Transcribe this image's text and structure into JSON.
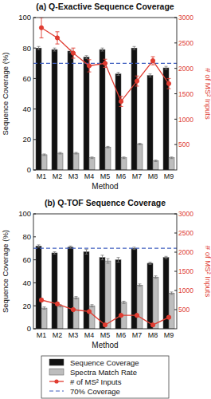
{
  "chart_data": [
    {
      "type": "bar",
      "title": "(a) Q-Exactive Sequence Coverage",
      "x_label": "Method",
      "y_label": "Sequence Coverage (%)",
      "y2_label": "# of MS² Inputs",
      "categories": [
        "M1",
        "M2",
        "M3",
        "M4",
        "M5",
        "M6",
        "M7",
        "M8",
        "M9"
      ],
      "ylim": [
        0,
        100
      ],
      "yticks": [
        0,
        20,
        40,
        60,
        80,
        100
      ],
      "y2lim": [
        0,
        3000
      ],
      "y2ticks": [
        500,
        1000,
        1500,
        2000,
        2500,
        3000
      ],
      "grid": false,
      "legend": "bottom",
      "reference_line": {
        "name": "70% Coverage",
        "value": 70,
        "color": "#3f5fbf",
        "line_style": "dashed"
      },
      "series": [
        {
          "name": "Sequence Coverage",
          "type": "bar",
          "color": "#111111",
          "values": [
            80,
            79,
            78,
            74,
            79,
            63,
            80,
            62,
            67
          ],
          "errors": [
            1,
            1,
            1,
            1,
            1,
            1,
            1,
            1,
            1
          ]
        },
        {
          "name": "Spectra Match Rate",
          "type": "bar",
          "color": "#bdbdbd",
          "values": [
            10,
            11,
            11,
            8,
            15,
            8,
            17,
            6,
            8
          ],
          "errors": [
            0.5,
            0.5,
            0.5,
            0.5,
            0.5,
            0.5,
            0.5,
            0.5,
            0.5
          ]
        },
        {
          "name": "# of MS² Inputs",
          "type": "line",
          "axis": "y2",
          "color": "#e03c31",
          "marker": "circle",
          "values": [
            2800,
            2600,
            2300,
            2050,
            2100,
            1350,
            1750,
            2150,
            1700
          ],
          "errors": [
            200,
            120,
            100,
            120,
            80,
            100,
            100,
            80,
            100
          ]
        }
      ]
    },
    {
      "type": "bar",
      "title": "(b) Q-TOF Sequence Coverage",
      "x_label": "Method",
      "y_label": "Sequence Coverage (%)",
      "y2_label": "# of MS² Inputs",
      "categories": [
        "M1",
        "M2",
        "M3",
        "M4",
        "M5",
        "M6",
        "M7",
        "M8",
        "M9"
      ],
      "ylim": [
        0,
        100
      ],
      "yticks": [
        0,
        20,
        40,
        60,
        80,
        100
      ],
      "y2lim": [
        0,
        3000
      ],
      "y2ticks": [
        500,
        1000,
        1500,
        2000,
        2500,
        3000
      ],
      "grid": false,
      "reference_line": {
        "name": "70% Coverage",
        "value": 70,
        "color": "#3f5fbf",
        "line_style": "dashed"
      },
      "series": [
        {
          "name": "Sequence Coverage",
          "type": "bar",
          "color": "#111111",
          "values": [
            72,
            66,
            71,
            67,
            62,
            60,
            70,
            57,
            62
          ],
          "errors": [
            1,
            1,
            1,
            2,
            2,
            2,
            1,
            1,
            1
          ]
        },
        {
          "name": "Spectra Match Rate",
          "type": "bar",
          "color": "#bdbdbd",
          "values": [
            18,
            20,
            27,
            20,
            59,
            23,
            38,
            45,
            31
          ],
          "errors": [
            1,
            1,
            1,
            1,
            2,
            1,
            1,
            1,
            1
          ]
        },
        {
          "name": "# of MS² Inputs",
          "type": "line",
          "axis": "y2",
          "color": "#e03c31",
          "marker": "circle",
          "values": [
            750,
            650,
            500,
            450,
            100,
            350,
            350,
            100,
            300
          ],
          "errors": [
            40,
            30,
            20,
            20,
            20,
            20,
            20,
            20,
            30
          ]
        }
      ]
    }
  ]
}
